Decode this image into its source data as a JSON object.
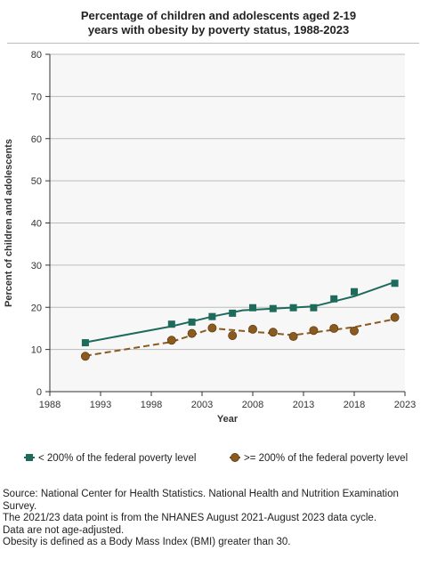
{
  "chart_data": {
    "type": "line",
    "title_lines": [
      "Percentage of children and adolescents aged 2-19",
      "years with obesity by poverty status, 1988-2023"
    ],
    "xlabel": "Year",
    "ylabel": "Percent of children and adolescents",
    "xlim": [
      1988,
      2023
    ],
    "ylim": [
      0,
      80
    ],
    "x_ticks": [
      1988,
      1993,
      1998,
      2003,
      2008,
      2013,
      2018,
      2023
    ],
    "y_ticks": [
      0,
      10,
      20,
      30,
      40,
      50,
      60,
      70,
      80
    ],
    "grid": "horizontal",
    "legend_position": "bottom",
    "series": [
      {
        "name": "< 200% of the federal poverty level",
        "color": "#1e6b5c",
        "marker": "square",
        "line_style": "solid",
        "points": [
          {
            "x": 1991.5,
            "y": 11.6
          },
          {
            "x": 2000,
            "y": 16.0
          },
          {
            "x": 2002,
            "y": 16.5
          },
          {
            "x": 2004,
            "y": 17.8
          },
          {
            "x": 2006,
            "y": 18.6
          },
          {
            "x": 2008,
            "y": 19.9
          },
          {
            "x": 2010,
            "y": 19.7
          },
          {
            "x": 2012,
            "y": 19.9
          },
          {
            "x": 2014,
            "y": 19.9
          },
          {
            "x": 2016,
            "y": 22.0
          },
          {
            "x": 2018,
            "y": 23.7
          },
          {
            "x": 2022,
            "y": 25.7
          }
        ],
        "trend": [
          {
            "x": 1991.5,
            "y": 11.7
          },
          {
            "x": 2000,
            "y": 15.5
          },
          {
            "x": 2004,
            "y": 17.8
          },
          {
            "x": 2007,
            "y": 19.3
          },
          {
            "x": 2014,
            "y": 20.2
          },
          {
            "x": 2018,
            "y": 22.6
          },
          {
            "x": 2022,
            "y": 26.0
          }
        ]
      },
      {
        "name": ">= 200% of the federal poverty level",
        "color": "#8b5a1e",
        "marker": "circle",
        "line_style": "dashed",
        "points": [
          {
            "x": 1991.5,
            "y": 8.4
          },
          {
            "x": 2000,
            "y": 12.2
          },
          {
            "x": 2002,
            "y": 13.8
          },
          {
            "x": 2004,
            "y": 15.1
          },
          {
            "x": 2006,
            "y": 13.3
          },
          {
            "x": 2008,
            "y": 14.8
          },
          {
            "x": 2010,
            "y": 14.1
          },
          {
            "x": 2012,
            "y": 13.1
          },
          {
            "x": 2014,
            "y": 14.5
          },
          {
            "x": 2016,
            "y": 15.0
          },
          {
            "x": 2018,
            "y": 14.4
          },
          {
            "x": 2022,
            "y": 17.6
          }
        ],
        "trend": [
          {
            "x": 1991.5,
            "y": 8.5
          },
          {
            "x": 2000,
            "y": 11.8
          },
          {
            "x": 2004,
            "y": 15.0
          },
          {
            "x": 2012,
            "y": 13.4
          },
          {
            "x": 2018,
            "y": 15.3
          },
          {
            "x": 2022,
            "y": 17.2
          }
        ]
      }
    ]
  },
  "footnotes": [
    "Source: National Center for Health Statistics. National Health and Nutrition Examination Survey.",
    "The 2021/23 data point is from the NHANES August 2021-August 2023 data cycle.",
    "Data are not age-adjusted.",
    "Obesity is defined as a Body Mass Index (BMI) greater than 30."
  ],
  "colors": {
    "plot_background": "#f7f7f7",
    "gridline": "#bbbbbb",
    "axis": "#333333"
  }
}
